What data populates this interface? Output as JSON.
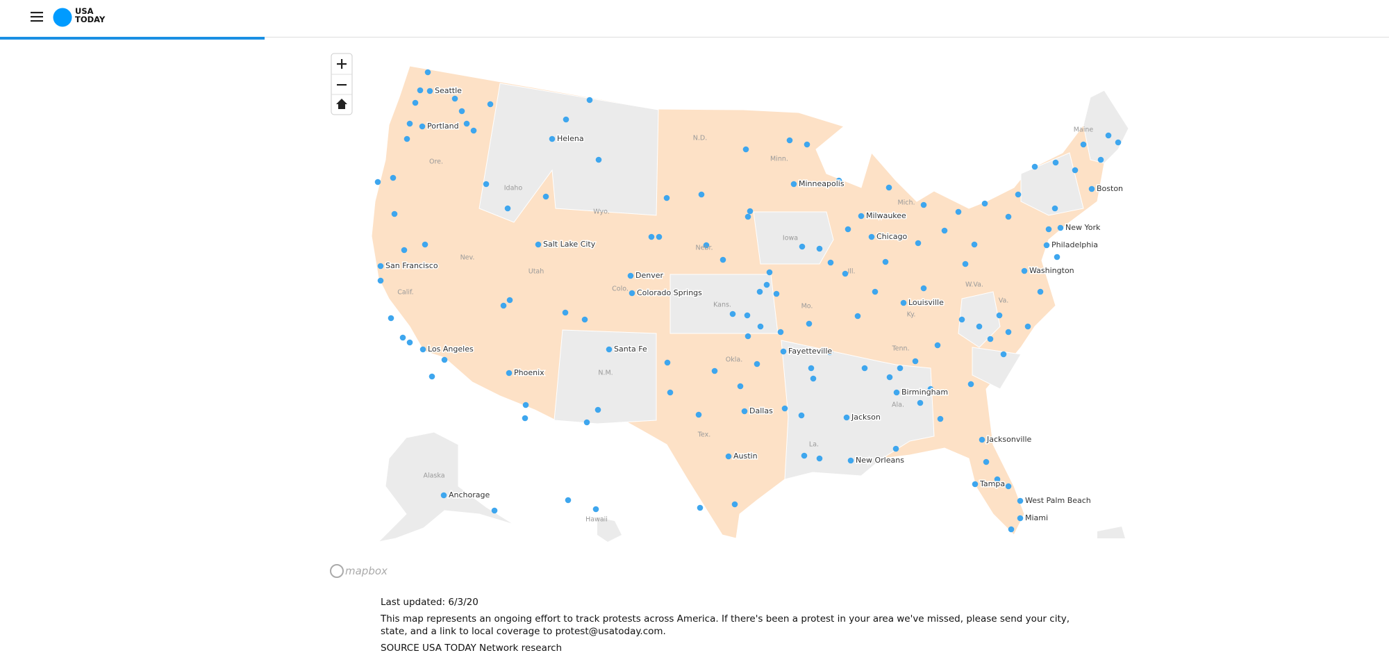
{
  "header": {
    "logo_lines": [
      "USA",
      "TODAY"
    ]
  },
  "map": {
    "attribution": "mapbox",
    "cities": [
      "Seattle",
      "Portland",
      "Helena",
      "Minneapolis",
      "Boston",
      "Milwaukee",
      "Chicago",
      "New York",
      "Philadelphia",
      "Washington",
      "Salt Lake City",
      "Denver",
      "Colorado Springs",
      "San Francisco",
      "Louisville",
      "Los Angeles",
      "Santa Fe",
      "Fayetteville",
      "Phoenix",
      "Birmingham",
      "Dallas",
      "Jackson",
      "Jacksonville",
      "Austin",
      "New Orleans",
      "Anchorage",
      "Tampa",
      "West Palm Beach",
      "Miami"
    ],
    "state_labels": [
      "Maine",
      "Ore.",
      "N.D.",
      "Minn.",
      "Idaho",
      "Wyo.",
      "Iowa",
      "Nebr.",
      "Nev.",
      "Utah",
      "Calif.",
      "Colo.",
      "Kans.",
      "N.M.",
      "Tex.",
      "Alaska",
      "Hawaii",
      "Okla.",
      "La.",
      "Ala.",
      "Ky.",
      "W.Va.",
      "Ill.",
      "Mo.",
      "Mich.",
      "Va.",
      "Tenn."
    ]
  },
  "footer": {
    "updated": "Last updated: 6/3/20",
    "description": "This map represents an ongoing effort to track protests across America. If there's been a protest in your area we've missed, please send your city, state, and a link to local coverage to protest@usatoday.com.",
    "source": "SOURCE USA TODAY Network research"
  }
}
